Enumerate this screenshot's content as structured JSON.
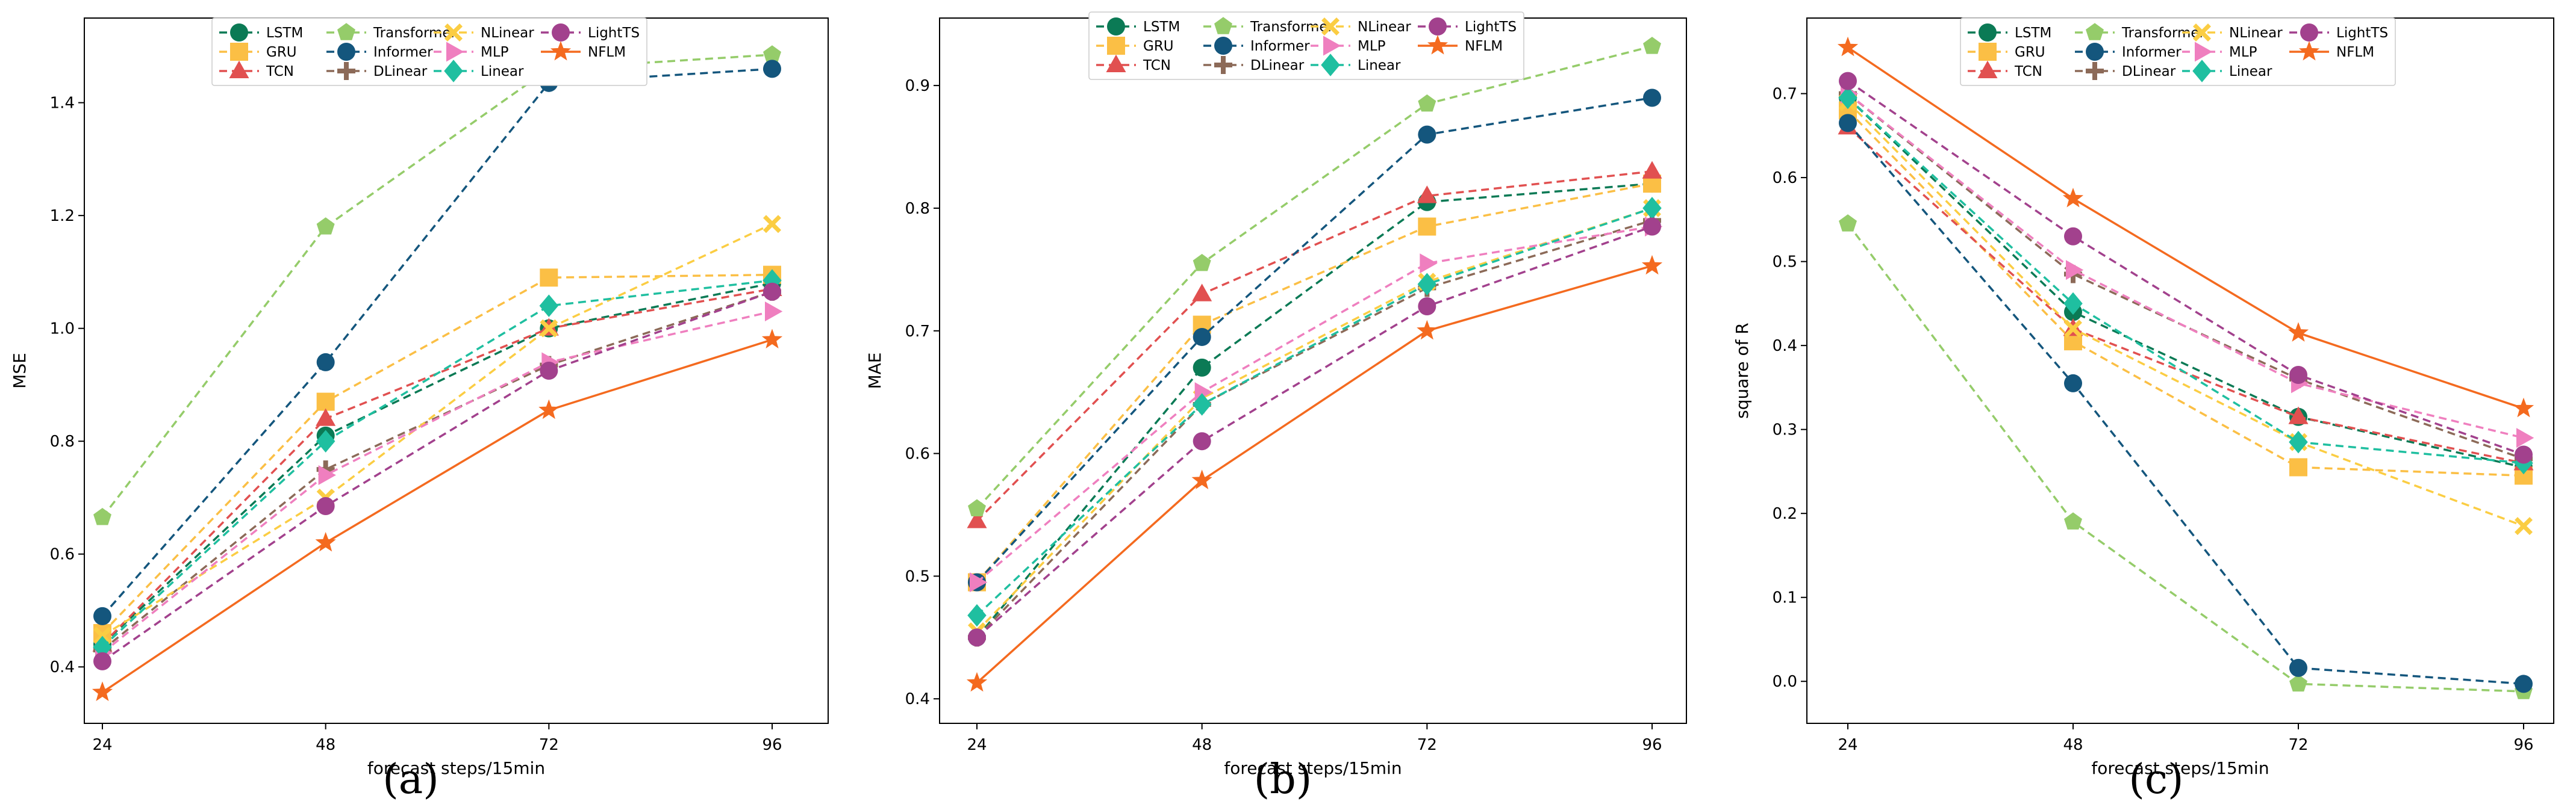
{
  "legend_order": [
    "LSTM",
    "GRU",
    "TCN",
    "Transformer",
    "Informer",
    "DLinear",
    "NLinear",
    "MLP",
    "Linear",
    "LightTS",
    "NFLM"
  ],
  "series_styles": {
    "LSTM": {
      "color": "#0b7a55",
      "marker": "circle",
      "dash": true
    },
    "GRU": {
      "color": "#fbbf45",
      "marker": "square",
      "dash": true
    },
    "TCN": {
      "color": "#e15050",
      "marker": "triangle",
      "dash": true
    },
    "Transformer": {
      "color": "#95cc6a",
      "marker": "pentagon",
      "dash": true
    },
    "Informer": {
      "color": "#14567d",
      "marker": "circle",
      "dash": true
    },
    "DLinear": {
      "color": "#8c6a58",
      "marker": "plus",
      "dash": true
    },
    "NLinear": {
      "color": "#fbcd43",
      "marker": "x",
      "dash": true
    },
    "MLP": {
      "color": "#ef7fbf",
      "marker": "triangle-right",
      "dash": true
    },
    "Linear": {
      "color": "#1fbfa0",
      "marker": "diamond",
      "dash": true
    },
    "LightTS": {
      "color": "#a2418d",
      "marker": "circle",
      "dash": true
    },
    "NFLM": {
      "color": "#f46a1f",
      "marker": "star",
      "dash": false
    }
  },
  "chart_data": [
    {
      "panel_label": "(a)",
      "type": "line",
      "x": [
        24,
        48,
        72,
        96
      ],
      "xticks": [
        "24",
        "48",
        "72",
        "96"
      ],
      "xlabel": "forecast steps/15min",
      "ylabel": "MSE",
      "ylim": [
        0.3,
        1.55
      ],
      "yticks": [
        0.4,
        0.6,
        0.8,
        1.0,
        1.2,
        1.4
      ],
      "yticklabels": [
        "0.4",
        "0.6",
        "0.8",
        "1.0",
        "1.2",
        "1.4"
      ],
      "grid": false,
      "legend": "top-center",
      "series": [
        {
          "name": "LSTM",
          "values": [
            0.44,
            0.81,
            1.0,
            1.08
          ]
        },
        {
          "name": "GRU",
          "values": [
            0.46,
            0.87,
            1.09,
            1.095
          ]
        },
        {
          "name": "TCN",
          "values": [
            0.44,
            0.84,
            1.0,
            1.07
          ]
        },
        {
          "name": "Transformer",
          "values": [
            0.665,
            1.18,
            1.46,
            1.485
          ]
        },
        {
          "name": "Informer",
          "values": [
            0.49,
            0.94,
            1.435,
            1.46
          ]
        },
        {
          "name": "DLinear",
          "values": [
            0.43,
            0.75,
            0.935,
            1.065
          ]
        },
        {
          "name": "NLinear",
          "values": [
            0.455,
            0.7,
            1.0,
            1.185
          ]
        },
        {
          "name": "MLP",
          "values": [
            0.425,
            0.74,
            0.94,
            1.03
          ]
        },
        {
          "name": "Linear",
          "values": [
            0.435,
            0.8,
            1.04,
            1.085
          ]
        },
        {
          "name": "LightTS",
          "values": [
            0.41,
            0.685,
            0.925,
            1.065
          ]
        },
        {
          "name": "NFLM",
          "values": [
            0.355,
            0.62,
            0.855,
            0.98
          ]
        }
      ]
    },
    {
      "panel_label": "(b)",
      "type": "line",
      "x": [
        24,
        48,
        72,
        96
      ],
      "xticks": [
        "24",
        "48",
        "72",
        "96"
      ],
      "xlabel": "forecast steps/15min",
      "ylabel": "MAE",
      "ylim": [
        0.38,
        0.955
      ],
      "yticks": [
        0.4,
        0.5,
        0.6,
        0.7,
        0.8,
        0.9
      ],
      "yticklabels": [
        "0.4",
        "0.5",
        "0.6",
        "0.7",
        "0.8",
        "0.9"
      ],
      "grid": false,
      "legend": "top-center",
      "series": [
        {
          "name": "LSTM",
          "values": [
            0.45,
            0.67,
            0.805,
            0.82
          ]
        },
        {
          "name": "GRU",
          "values": [
            0.495,
            0.705,
            0.785,
            0.82
          ]
        },
        {
          "name": "TCN",
          "values": [
            0.545,
            0.73,
            0.81,
            0.83
          ]
        },
        {
          "name": "Transformer",
          "values": [
            0.555,
            0.755,
            0.885,
            0.932
          ]
        },
        {
          "name": "Informer",
          "values": [
            0.495,
            0.695,
            0.86,
            0.89
          ]
        },
        {
          "name": "DLinear",
          "values": [
            0.45,
            0.64,
            0.735,
            0.79
          ]
        },
        {
          "name": "NLinear",
          "values": [
            0.455,
            0.645,
            0.74,
            0.8
          ]
        },
        {
          "name": "MLP",
          "values": [
            0.495,
            0.65,
            0.755,
            0.785
          ]
        },
        {
          "name": "Linear",
          "values": [
            0.468,
            0.64,
            0.738,
            0.8
          ]
        },
        {
          "name": "LightTS",
          "values": [
            0.45,
            0.61,
            0.72,
            0.785
          ]
        },
        {
          "name": "NFLM",
          "values": [
            0.413,
            0.578,
            0.7,
            0.753
          ]
        }
      ]
    },
    {
      "panel_label": "(c)",
      "type": "line",
      "x": [
        24,
        48,
        72,
        96
      ],
      "xticks": [
        "24",
        "48",
        "72",
        "96"
      ],
      "xlabel": "forecast steps/15min",
      "ylabel": "square of R",
      "ylim": [
        -0.05,
        0.79
      ],
      "yticks": [
        0.0,
        0.1,
        0.2,
        0.3,
        0.4,
        0.5,
        0.6,
        0.7
      ],
      "yticklabels": [
        "0.0",
        "0.1",
        "0.2",
        "0.3",
        "0.4",
        "0.5",
        "0.6",
        "0.7"
      ],
      "grid": false,
      "legend": "top-center",
      "series": [
        {
          "name": "LSTM",
          "values": [
            0.695,
            0.44,
            0.315,
            0.255
          ]
        },
        {
          "name": "GRU",
          "values": [
            0.68,
            0.405,
            0.255,
            0.245
          ]
        },
        {
          "name": "TCN",
          "values": [
            0.66,
            0.42,
            0.315,
            0.26
          ]
        },
        {
          "name": "Transformer",
          "values": [
            0.545,
            0.19,
            -0.003,
            -0.012
          ]
        },
        {
          "name": "Informer",
          "values": [
            0.665,
            0.355,
            0.016,
            -0.003
          ]
        },
        {
          "name": "DLinear",
          "values": [
            0.7,
            0.485,
            0.36,
            0.265
          ]
        },
        {
          "name": "NLinear",
          "values": [
            0.69,
            0.42,
            0.285,
            0.185
          ]
        },
        {
          "name": "MLP",
          "values": [
            0.7,
            0.49,
            0.355,
            0.29
          ]
        },
        {
          "name": "Linear",
          "values": [
            0.695,
            0.45,
            0.285,
            0.26
          ]
        },
        {
          "name": "LightTS",
          "values": [
            0.715,
            0.53,
            0.365,
            0.27
          ]
        },
        {
          "name": "NFLM",
          "values": [
            0.755,
            0.575,
            0.415,
            0.325
          ]
        }
      ]
    }
  ]
}
